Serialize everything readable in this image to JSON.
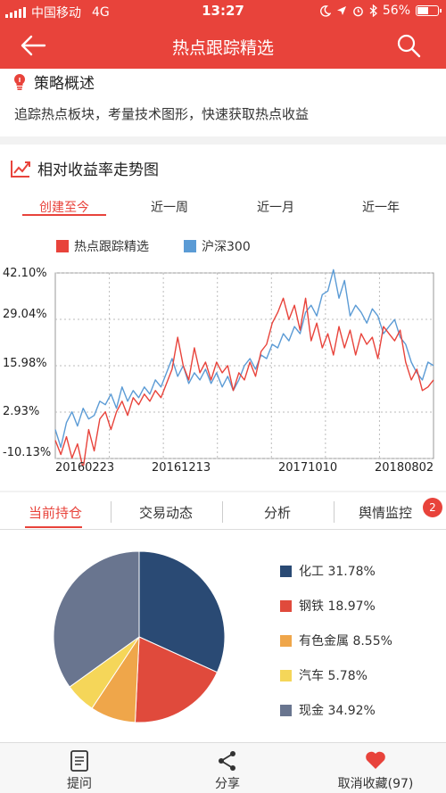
{
  "status_bar": {
    "carrier": "中国移动",
    "network": "4G",
    "time": "13:27",
    "battery": "56%",
    "battery_level": 0.56,
    "icons": [
      "signal-icon",
      "moon-icon",
      "location-icon",
      "alarm-icon",
      "bluetooth-icon",
      "battery-icon"
    ]
  },
  "navbar": {
    "title": "热点跟踪精选",
    "back_icon": "back-arrow-icon",
    "search_icon": "search-icon"
  },
  "strategy": {
    "title": "策略概述",
    "icon": "lightbulb-icon",
    "text": "追踪热点板块，考量技术图形，快速获取热点收益"
  },
  "trend": {
    "title": "相对收益率走势图",
    "icon": "trend-chart-icon",
    "range_tabs": [
      "创建至今",
      "近一周",
      "近一月",
      "近一年"
    ],
    "active_range": 0
  },
  "chart_data": {
    "type": "line",
    "series": [
      {
        "name": "热点跟踪精选",
        "color": "#e8433b",
        "values": [
          -5,
          -9,
          -4,
          -10,
          -6,
          -13,
          -2,
          -8,
          1,
          3,
          -2,
          3,
          6,
          2,
          7,
          5,
          8,
          6,
          9,
          7,
          11,
          15,
          24,
          16,
          12,
          21,
          14,
          17,
          12,
          17,
          14,
          16,
          9,
          14,
          12,
          17,
          13,
          20,
          22,
          28,
          31,
          35,
          29,
          33,
          26,
          35,
          23,
          28,
          21,
          25,
          19,
          27,
          21,
          26,
          19,
          25,
          22,
          24,
          18,
          27,
          25,
          23,
          26,
          17,
          12,
          15,
          9,
          10,
          12
        ]
      },
      {
        "name": "沪深300",
        "color": "#5b9bd5",
        "values": [
          -2,
          -7,
          0,
          3,
          -1,
          4,
          1,
          2,
          6,
          5,
          8,
          4,
          10,
          6,
          9,
          7,
          10,
          8,
          12,
          10,
          14,
          18,
          13,
          16,
          11,
          14,
          12,
          15,
          11,
          14,
          10,
          13,
          9,
          12,
          16,
          18,
          15,
          19,
          18,
          22,
          21,
          25,
          23,
          27,
          25,
          31,
          33,
          30,
          36,
          37,
          43,
          35,
          40,
          30,
          33,
          31,
          28,
          32,
          30,
          25,
          27,
          29,
          24,
          22,
          17,
          14,
          12,
          17,
          16
        ]
      }
    ],
    "y_ticks": [
      "42.10%",
      "29.04%",
      "15.98%",
      "2.93%",
      "-10.13%"
    ],
    "x_ticks": [
      "20160223",
      "20161213",
      "20171010",
      "20180802"
    ],
    "ylim": [
      -10.13,
      42.1
    ],
    "grid": true,
    "legend": "top"
  },
  "holdings": {
    "tabs": [
      "当前持仓",
      "交易动态",
      "分析",
      "舆情监控"
    ],
    "active_tab": 0,
    "badge": "2"
  },
  "pie_data": {
    "type": "pie",
    "slices": [
      {
        "label": "化工 31.78%",
        "value": 31.78,
        "color": "#2a4a74"
      },
      {
        "label": "钢铁 18.97%",
        "value": 18.97,
        "color": "#e04a3c"
      },
      {
        "label": "有色金属 8.55%",
        "value": 8.55,
        "color": "#efa64a"
      },
      {
        "label": "汽车 5.78%",
        "value": 5.78,
        "color": "#f5d659"
      },
      {
        "label": "现金 34.92%",
        "value": 34.92,
        "color": "#69758f"
      }
    ]
  },
  "bottom_bar": {
    "ask": "提问",
    "share": "分享",
    "unfavorite": "取消收藏(97)"
  }
}
